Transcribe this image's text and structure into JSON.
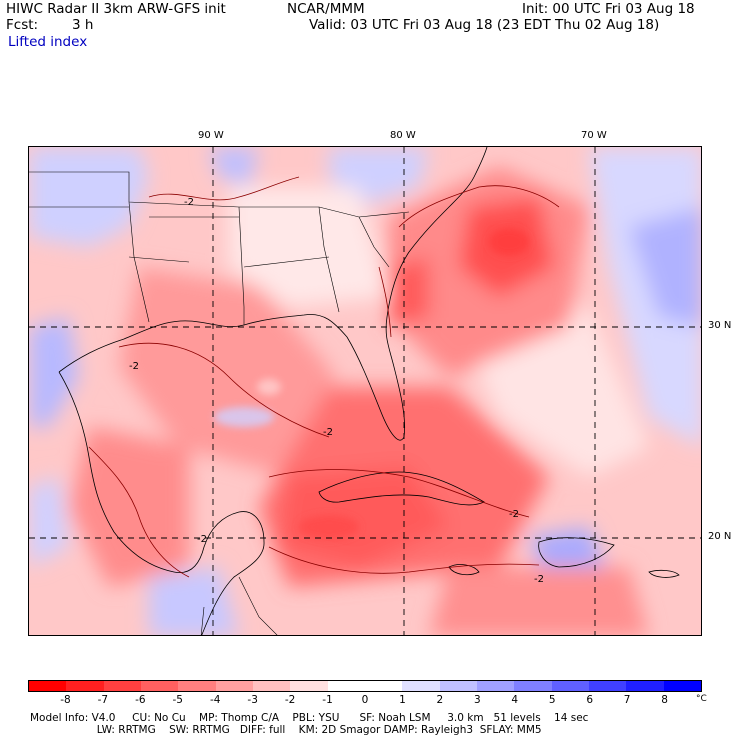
{
  "header": {
    "model_title": "HIWC Radar II 3km ARW-GFS init",
    "org": "NCAR/MMM",
    "init": "Init: 00 UTC Fri 03 Aug 18",
    "fcst_label": "Fcst:",
    "fcst_value": "3 h",
    "valid": "Valid: 03 UTC Fri 03 Aug 18 (23 EDT Thu 02 Aug 18)",
    "field": "Lifted index"
  },
  "map": {
    "lon_labels": [
      "90 W",
      "80 W",
      "70 W"
    ],
    "lat_labels": [
      "30 N",
      "20 N"
    ],
    "contour_labels": [
      "-2",
      "-2",
      "-2",
      "-2",
      "-2",
      "-2"
    ],
    "colors": {
      "strong_neg": "#ff5555",
      "mid_neg": "#ff9090",
      "weak_neg": "#ffc8c8",
      "neutral": "#fff2f2",
      "weak_pos": "#cfd0ff",
      "mid_pos": "#9a9cff"
    }
  },
  "colorbar": {
    "colors": [
      "#ff0000",
      "#ff2020",
      "#ff4040",
      "#ff6060",
      "#ff8080",
      "#ffa0a0",
      "#ffc0c0",
      "#ffe0e0",
      "#ffffff",
      "#ffffff",
      "#e0e0ff",
      "#c0c0ff",
      "#a0a0ff",
      "#8080ff",
      "#6060ff",
      "#4040ff",
      "#2020ff",
      "#0000ff"
    ],
    "labels": [
      "-8",
      "-7",
      "-6",
      "-5",
      "-4",
      "-3",
      "-2",
      "-1",
      "0",
      "1",
      "2",
      "3",
      "4",
      "5",
      "6",
      "7",
      "8"
    ],
    "unit": "°C"
  },
  "footer": {
    "line1": "Model Info: V4.0     CU: No Cu    MP: Thomp C/A    PBL: YSU      SF: Noah LSM     3.0 km   51 levels    14 sec",
    "line2": "                    LW: RRTMG    SW: RRTMG   DIFF: full    KM: 2D Smagor DAMP: Rayleigh3  SFLAY: MM5"
  }
}
